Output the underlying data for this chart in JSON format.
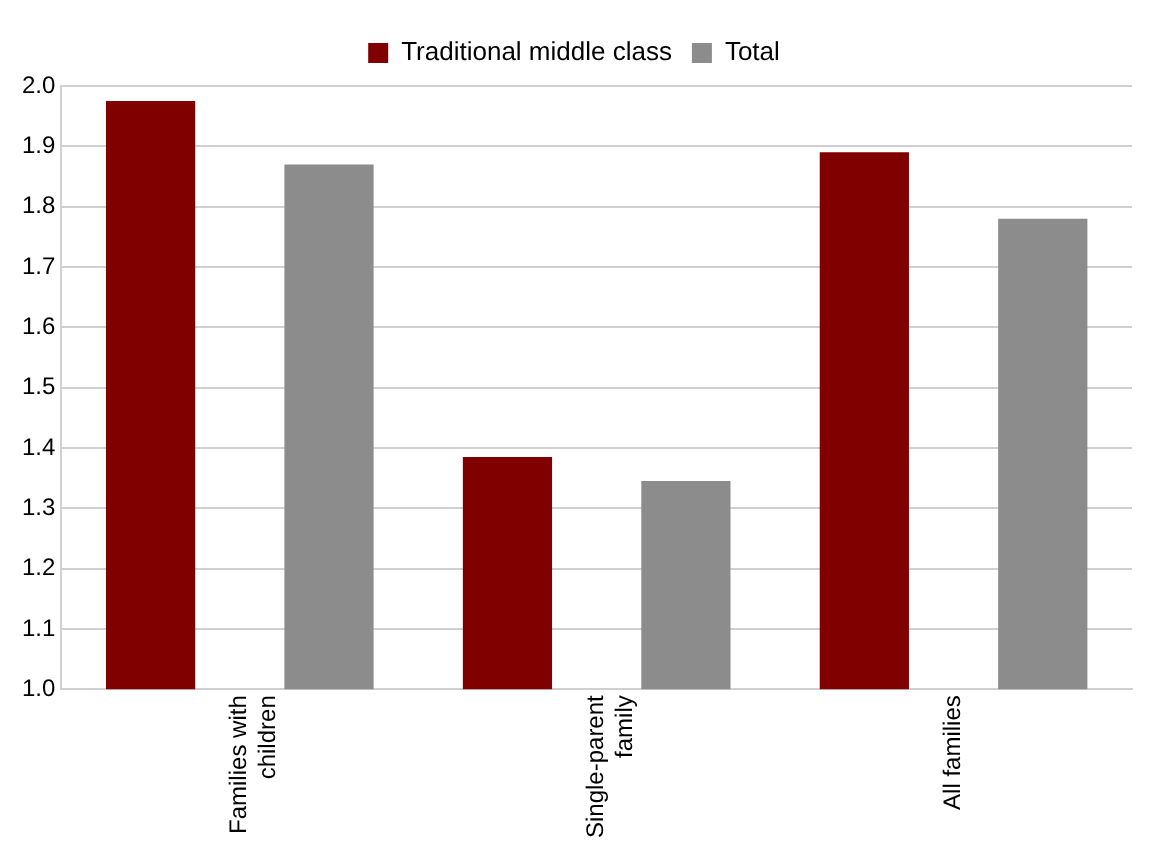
{
  "chart_data": {
    "type": "bar",
    "categories": [
      "Families with children",
      "Single-parent family",
      "All families"
    ],
    "series": [
      {
        "name": "Traditional middle class",
        "color": "#800000",
        "values": [
          1.975,
          1.385,
          1.89
        ]
      },
      {
        "name": "Total",
        "color": "#8c8c8c",
        "values": [
          1.87,
          1.345,
          1.78
        ]
      }
    ],
    "ylim": [
      1.0,
      2.0
    ],
    "yticks": [
      {
        "value": 1.0,
        "label": "1.0"
      },
      {
        "value": 1.1,
        "label": "1.1"
      },
      {
        "value": 1.2,
        "label": "1.2"
      },
      {
        "value": 1.3,
        "label": "1.3"
      },
      {
        "value": 1.4,
        "label": "1.4"
      },
      {
        "value": 1.5,
        "label": "1.5"
      },
      {
        "value": 1.6,
        "label": "1.6"
      },
      {
        "value": 1.7,
        "label": "1.7"
      },
      {
        "value": 1.8,
        "label": "1.8"
      },
      {
        "value": 1.9,
        "label": "1.9"
      },
      {
        "value": 2.0,
        "label": "2.0"
      }
    ],
    "grid": "y",
    "legend": "top"
  }
}
